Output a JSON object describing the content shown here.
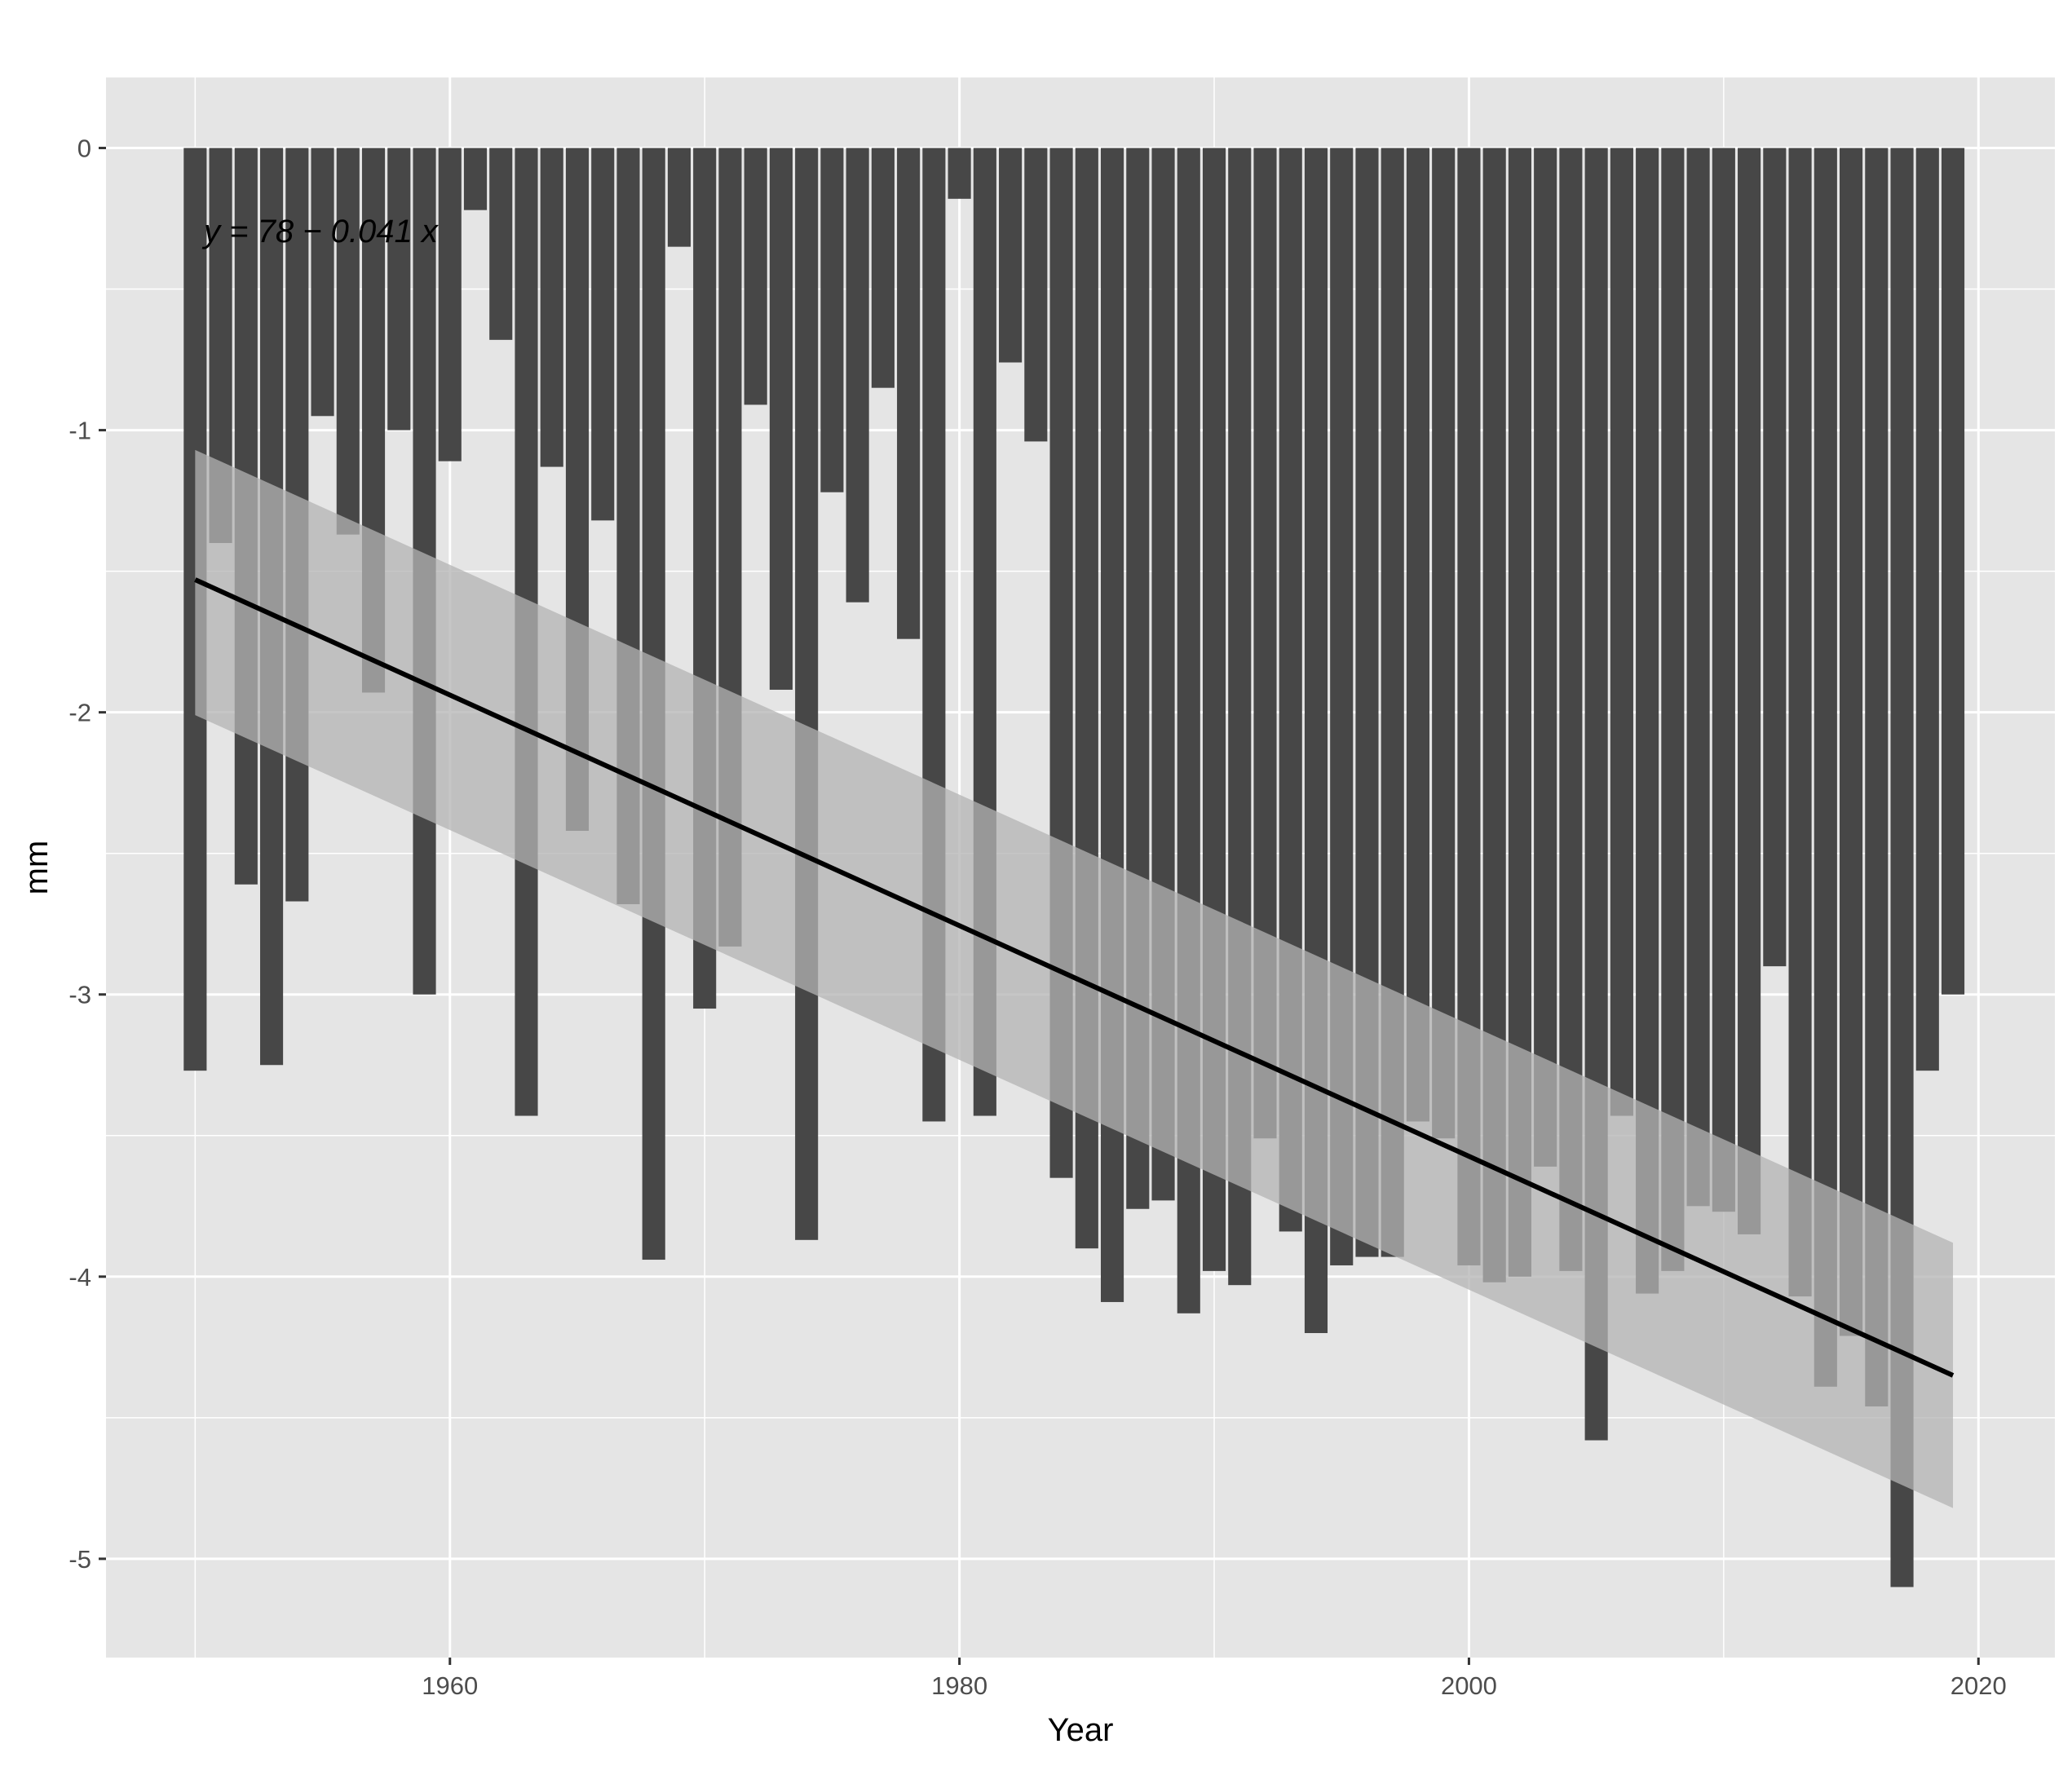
{
  "chart_data": {
    "type": "bar",
    "title": "",
    "xlabel": "Year",
    "ylabel": "mm",
    "xlim": [
      1946.5,
      2023
    ],
    "ylim": [
      -5.35,
      0.25
    ],
    "x_ticks": [
      1960,
      1980,
      2000,
      2020
    ],
    "x_tick_labels": [
      "1960",
      "1980",
      "2000",
      "2020"
    ],
    "y_ticks": [
      0,
      -1,
      -2,
      -3,
      -4,
      -5
    ],
    "y_tick_labels": [
      "0",
      "-1",
      "-2",
      "-3",
      "-4",
      "-5"
    ],
    "grid": true,
    "colors": {
      "panel_background": "#e5e5e5",
      "grid_lines": "#ffffff",
      "bars": "#474747",
      "confidence_band": "#b3b3b3",
      "trend_line": "#000000"
    },
    "x": [
      1950,
      1951,
      1952,
      1953,
      1954,
      1955,
      1956,
      1957,
      1958,
      1959,
      1960,
      1961,
      1962,
      1963,
      1964,
      1965,
      1966,
      1967,
      1968,
      1969,
      1970,
      1971,
      1972,
      1973,
      1974,
      1975,
      1976,
      1977,
      1978,
      1979,
      1980,
      1981,
      1982,
      1983,
      1984,
      1985,
      1986,
      1987,
      1988,
      1989,
      1990,
      1991,
      1992,
      1993,
      1994,
      1995,
      1996,
      1997,
      1998,
      1999,
      2000,
      2001,
      2002,
      2003,
      2004,
      2005,
      2006,
      2007,
      2008,
      2009,
      2010,
      2011,
      2012,
      2013,
      2014,
      2015,
      2016,
      2017,
      2018,
      2019
    ],
    "values": [
      -3.27,
      -1.4,
      -2.61,
      -3.25,
      -2.67,
      -0.95,
      -1.37,
      -1.93,
      -1.0,
      -3.0,
      -1.11,
      -0.22,
      -0.68,
      -3.43,
      -1.13,
      -2.42,
      -1.32,
      -2.68,
      -3.94,
      -0.35,
      -3.05,
      -2.83,
      -0.91,
      -1.92,
      -3.87,
      -1.22,
      -1.61,
      -0.85,
      -1.74,
      -3.45,
      -0.18,
      -3.43,
      -0.76,
      -1.04,
      -3.65,
      -3.9,
      -4.09,
      -3.76,
      -3.73,
      -4.13,
      -3.98,
      -4.03,
      -3.51,
      -3.84,
      -4.2,
      -3.96,
      -3.93,
      -3.93,
      -3.45,
      -3.51,
      -3.96,
      -4.02,
      -4.0,
      -3.61,
      -3.98,
      -4.58,
      -3.43,
      -4.06,
      -3.98,
      -3.75,
      -3.77,
      -3.85,
      -2.9,
      -4.07,
      -4.39,
      -4.21,
      -4.46,
      -5.1,
      -3.27,
      -3.0
    ],
    "trend": {
      "equation": "y = 78 − 0.041 x",
      "intercept": 78,
      "slope": -0.041,
      "x_start": 1950,
      "x_end": 2019,
      "y_start": -1.53,
      "y_end": -4.35,
      "band_lower_start": -2.01,
      "band_upper_start": -1.07,
      "band_lower_end": -4.82,
      "band_upper_end": -3.88
    }
  }
}
